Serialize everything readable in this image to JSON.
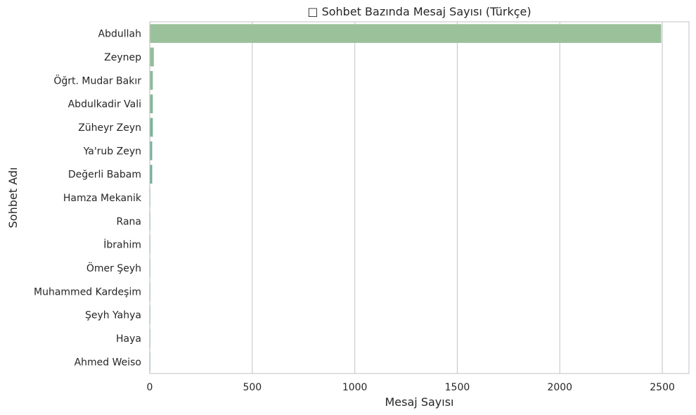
{
  "chart_data": {
    "type": "bar",
    "orientation": "horizontal",
    "title": "□ Sohbet Bazında Mesaj Sayısı (Türkçe)",
    "xlabel": "Mesaj Sayısı",
    "ylabel": "Sohbet Adı",
    "categories": [
      "Abdullah",
      "Zeynep",
      "Öğrt. Mudar Bakır",
      "Abdulkadir Vali",
      "Züheyr Zeyn",
      "Ya'rub Zeyn",
      "Değerli Babam",
      "Hamza Mekanik",
      "Rana",
      "İbrahim",
      "Ömer Şeyh",
      "Muhammed Kardeşim",
      "Şeyh Yahya",
      "Haya",
      "Ahmed Weiso"
    ],
    "values": [
      2495,
      20,
      15,
      15,
      15,
      12,
      12,
      2,
      2,
      2,
      1,
      1,
      1,
      1,
      1
    ],
    "xlim": [
      0,
      2630
    ],
    "xticks": [
      0,
      500,
      1000,
      1500,
      2000,
      2500
    ],
    "xtick_labels": [
      "0",
      "500",
      "1000",
      "1500",
      "2000",
      "2500"
    ],
    "colors": [
      "#9bc19a",
      "#92bd98",
      "#8aba98",
      "#82b798",
      "#7ab498",
      "#74b19a",
      "#6caf9c",
      "#66ab9c",
      "#60a89c",
      "#5ca49e",
      "#58a09e",
      "#549da0",
      "#509aa0",
      "#4c96a2",
      "#4892a2"
    ],
    "grid": "x",
    "legend": "none"
  }
}
